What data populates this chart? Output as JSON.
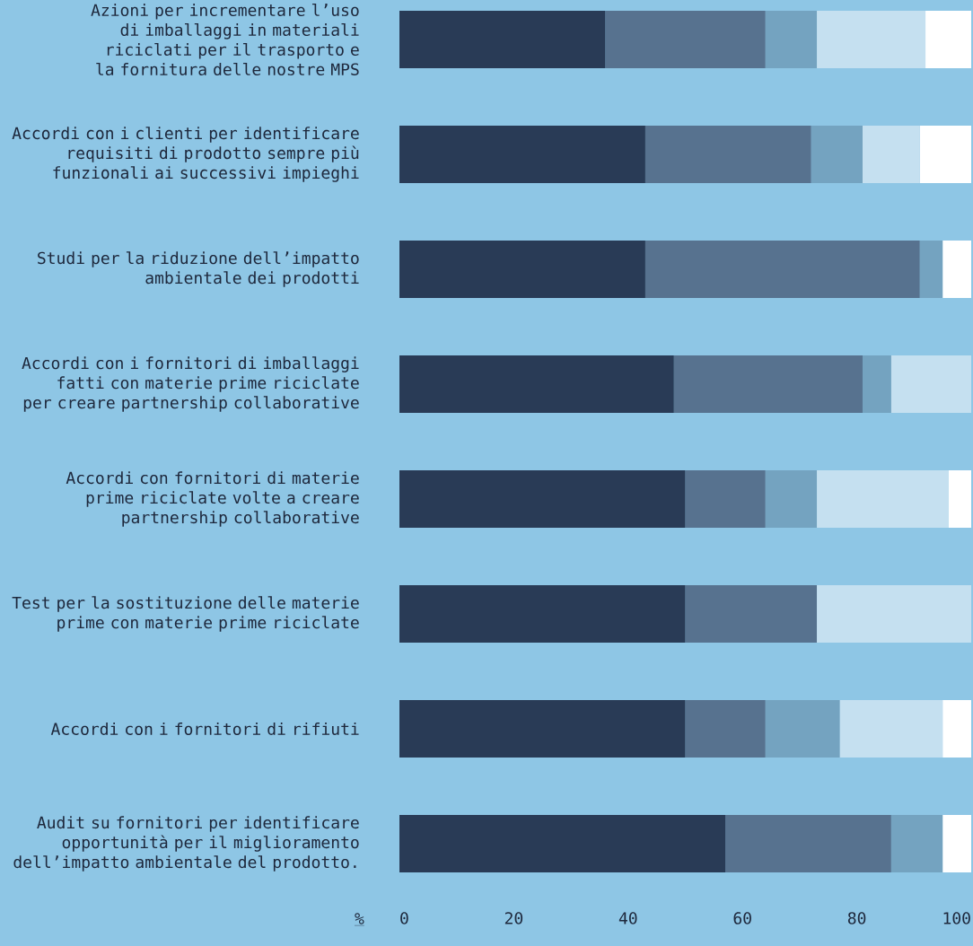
{
  "chart_data": {
    "type": "bar",
    "orientation": "horizontal",
    "stacked": true,
    "xlabel": "%",
    "categories": [
      "Azioni per incrementare l’uso di imballaggi in materiali riciclati per il trasporto e la fornitura delle nostre MPS",
      "Accordi con i clienti per identificare requisiti di prodotto sempre più funzionali ai successivi impieghi",
      "Studi per la riduzione dell’impatto ambientale dei prodotti",
      "Accordi con i fornitori di imballaggi fatti con materie prime riciclate per creare partnership collaborative",
      "Accordi con fornitori di materie prime riciclate volte a creare partnership collaborative",
      "Test per la sostituzione delle materie prime con materie prime riciclate",
      "Accordi con i fornitori di rifiuti",
      "Audit su fornitori per identificare opportunità per il miglioramento dell’impatto ambientale del prodotto."
    ],
    "series": [
      {
        "color": "#293b56",
        "values": [
          36,
          43,
          43,
          48,
          50,
          50,
          50,
          57
        ]
      },
      {
        "color": "#57728f",
        "values": [
          28,
          29,
          48,
          33,
          14,
          23,
          14,
          29
        ]
      },
      {
        "color": "#74a3c0",
        "values": [
          9,
          9,
          4,
          5,
          9,
          0,
          13,
          9
        ]
      },
      {
        "color": "#c5e0f0",
        "values": [
          19,
          10,
          0,
          14,
          23,
          27,
          18,
          0
        ]
      },
      {
        "color": "#ffffff",
        "values": [
          8,
          9,
          5,
          0,
          4,
          0,
          5,
          5
        ]
      }
    ],
    "xlim": [
      0,
      100
    ],
    "xticks": [
      0,
      20,
      40,
      60,
      80,
      100
    ],
    "grid": false
  }
}
